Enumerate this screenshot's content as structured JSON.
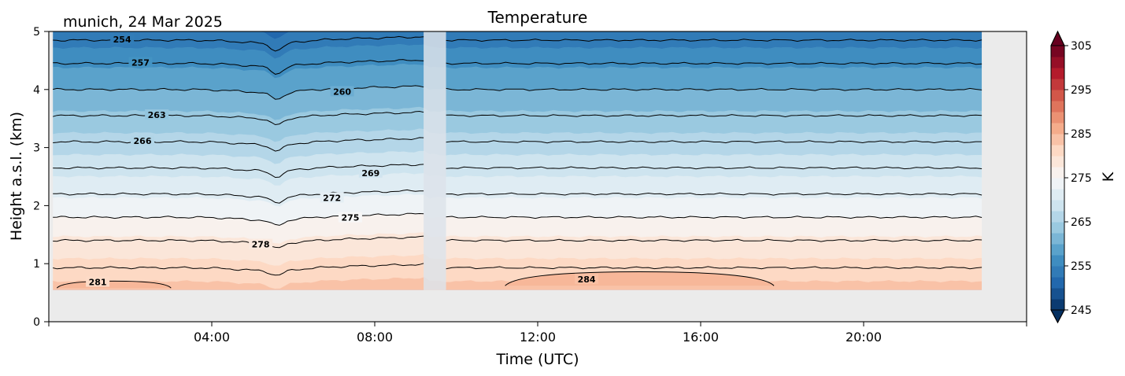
{
  "chart_data": {
    "type": "heatmap",
    "title": "Temperature",
    "subtitle": "munich, 24 Mar 2025",
    "xlabel": "Time (UTC)",
    "ylabel": "Height a.s.l. (km)",
    "xlim": [
      0,
      24
    ],
    "ylim": [
      0,
      5
    ],
    "x_ticks": [
      4,
      8,
      12,
      16,
      20
    ],
    "x_tick_labels": [
      "04:00",
      "08:00",
      "12:00",
      "16:00",
      "20:00"
    ],
    "y_ticks": [
      0,
      1,
      2,
      3,
      4,
      5
    ],
    "y_tick_labels": [
      "0",
      "1",
      "2",
      "3",
      "4",
      "5"
    ],
    "data_extent": {
      "time": [
        0.1,
        22.9
      ],
      "height": [
        0.55,
        5.0
      ]
    },
    "data_gap": {
      "time": [
        9.2,
        9.75
      ]
    },
    "colorbar": {
      "label": "K",
      "range": [
        245,
        305
      ],
      "ticks": [
        245,
        255,
        265,
        275,
        285,
        295,
        305
      ],
      "tick_labels": [
        "245",
        "255",
        "265",
        "275",
        "285",
        "295",
        "305"
      ],
      "colormap": "RdBu_r",
      "step": 2.5,
      "extend": "both"
    },
    "contour_levels": [
      254,
      257,
      260,
      263,
      266,
      269,
      272,
      275,
      278,
      281,
      284
    ],
    "contour_heights_km": {
      "254": 4.85,
      "257": 4.45,
      "260": 4.0,
      "263": 3.55,
      "266": 3.1,
      "269": 2.65,
      "272": 2.2,
      "275": 1.8,
      "278": 1.4,
      "281": 0.93
    },
    "contour_labels": [
      {
        "text": "254",
        "time": 1.8,
        "height": 4.85
      },
      {
        "text": "257",
        "time": 2.25,
        "height": 4.45
      },
      {
        "text": "260",
        "time": 7.2,
        "height": 3.95
      },
      {
        "text": "263",
        "time": 2.65,
        "height": 3.55
      },
      {
        "text": "266",
        "time": 2.3,
        "height": 3.1
      },
      {
        "text": "269",
        "time": 7.9,
        "height": 2.55
      },
      {
        "text": "272",
        "time": 6.95,
        "height": 2.12
      },
      {
        "text": "275",
        "time": 7.4,
        "height": 1.78
      },
      {
        "text": "278",
        "time": 5.2,
        "height": 1.32
      },
      {
        "text": "281",
        "time": 1.2,
        "height": 0.67
      },
      {
        "text": "284",
        "time": 13.2,
        "height": 0.72
      }
    ],
    "grid": false,
    "background_color": "#ebebeb"
  }
}
